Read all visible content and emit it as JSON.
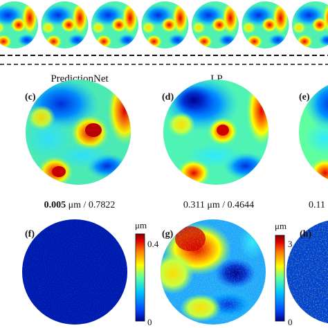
{
  "figure": {
    "columns": [
      {
        "title": "PredictionNet"
      },
      {
        "title": "LP"
      }
    ],
    "panel_labels": {
      "c": "(c)",
      "d": "(d)",
      "e": "(e)",
      "f": "(f)",
      "g": "(g)",
      "h": "(h)"
    },
    "metrics": {
      "c_value": "0.005",
      "c_rest": " μm / 0.7822",
      "d_text": "0.311 μm / 0.4644",
      "e_text": "0.11"
    },
    "colorbars": {
      "f": {
        "unit": "μm",
        "max": "0.4",
        "min": "0"
      },
      "g": {
        "unit": "μm",
        "max": "3",
        "min": "0"
      }
    },
    "colormap": [
      "#00008f",
      "#0050ff",
      "#00c8ff",
      "#5fffa0",
      "#ffff00",
      "#ff8000",
      "#e00000",
      "#800000"
    ]
  }
}
